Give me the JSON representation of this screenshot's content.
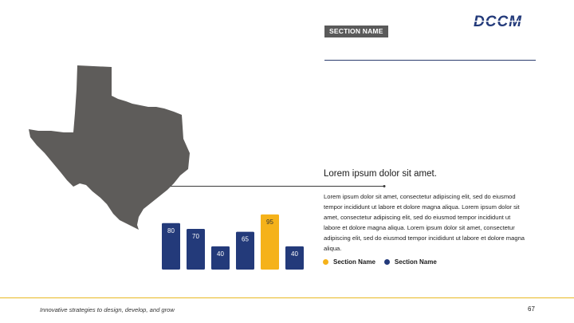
{
  "logo": {
    "text": "DCCM"
  },
  "section_tag": "SECTION NAME",
  "heading": "Lorem ipsum dolor sit amet.",
  "body": "Lorem ipsum dolor sit amet, consectetur adipiscing elit, sed do eiusmod tempor incididunt ut labore et dolore magna aliqua. Lorem ipsum dolor sit amet, consectetur adipiscing elit, sed do eiusmod tempor incididunt ut labore et dolore magna aliqua. Lorem ipsum dolor sit amet, consectetur adipiscing elit, sed do eiusmod tempor incididunt ut labore et dolore magna aliqua.",
  "legend": [
    {
      "label": "Section Name",
      "color": "#f5b21a"
    },
    {
      "label": "Section Name",
      "color": "#233a7a"
    }
  ],
  "colors": {
    "navy": "#233a7a",
    "gold": "#f5b21a",
    "map": "#5e5c5a",
    "tag": "#5a5a5a"
  },
  "chart_data": {
    "type": "bar",
    "values": [
      80,
      70,
      40,
      65,
      95,
      40
    ],
    "highlight_index": 4
  },
  "footer": {
    "tagline": "Innovative strategies to design, develop, and grow",
    "page": "67"
  }
}
